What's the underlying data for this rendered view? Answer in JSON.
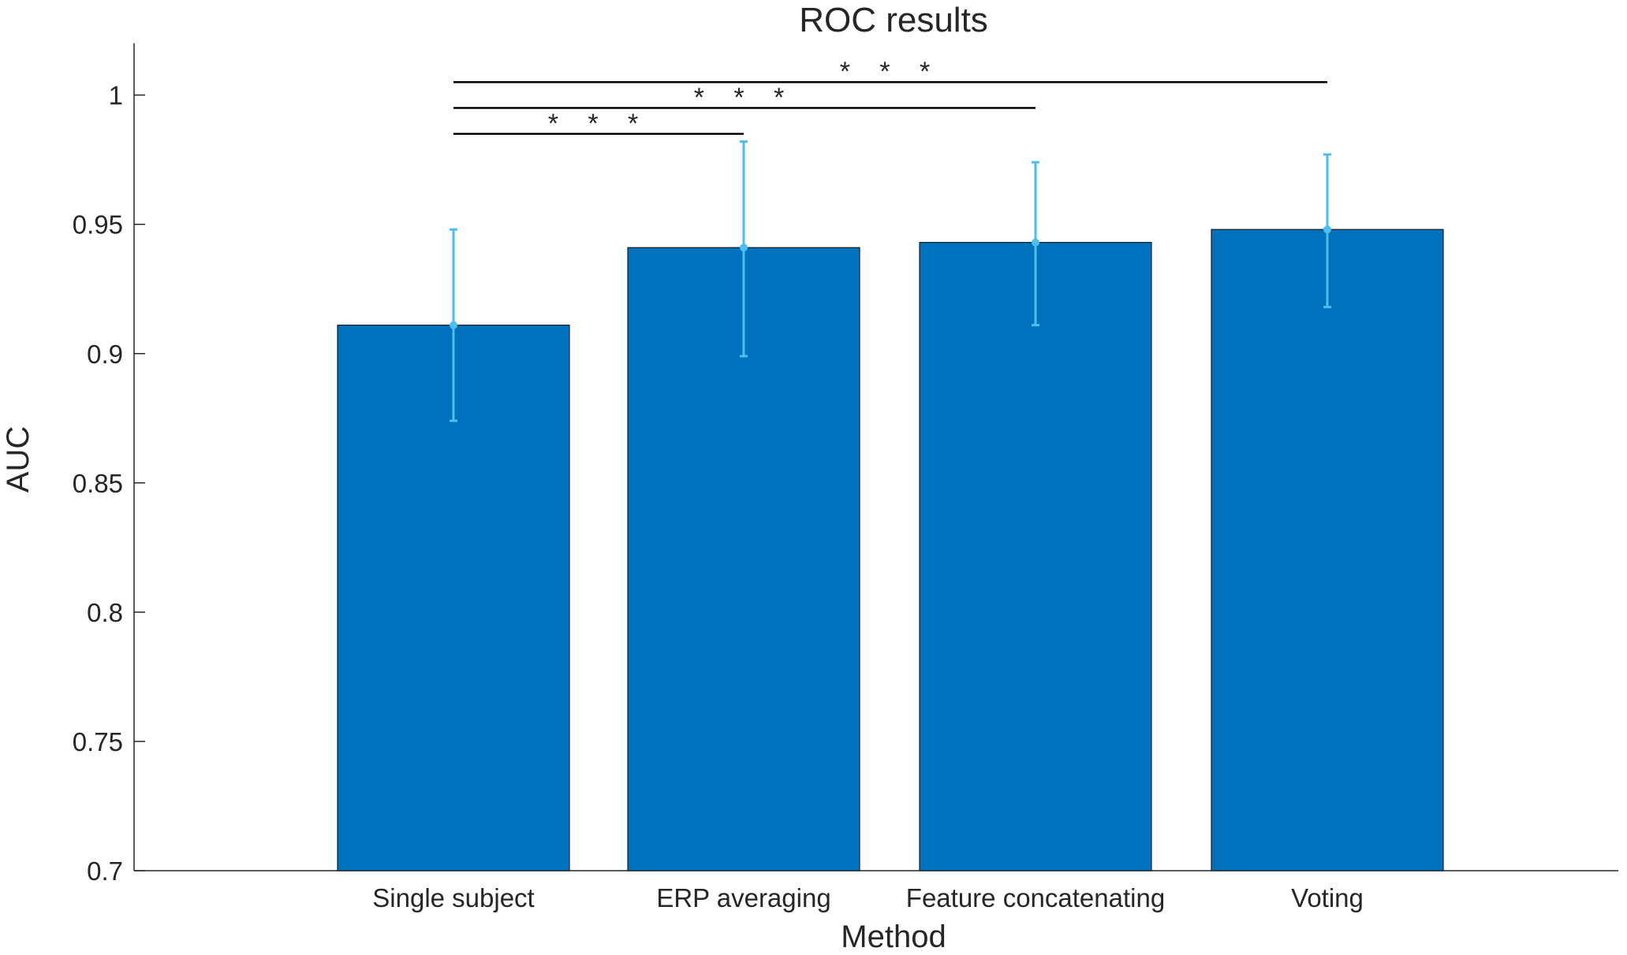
{
  "chart_data": {
    "type": "bar",
    "title": "ROC results",
    "xlabel": "Method",
    "ylabel": "AUC",
    "ylim": [
      0.7,
      1.02
    ],
    "yticks": [
      0.7,
      0.75,
      0.8,
      0.85,
      0.9,
      0.95,
      1
    ],
    "ytick_labels": [
      "0.7",
      "0.75",
      "0.8",
      "0.85",
      "0.9",
      "0.95",
      "1"
    ],
    "categories": [
      "Single subject",
      "ERP averaging",
      "Feature concatenating",
      "Voting"
    ],
    "values": [
      0.911,
      0.941,
      0.943,
      0.948
    ],
    "error_low": [
      0.874,
      0.899,
      0.911,
      0.918
    ],
    "error_high": [
      0.948,
      0.982,
      0.974,
      0.977
    ],
    "significance": [
      {
        "from": 0,
        "to": 1,
        "y": 0.985,
        "label": "* * *"
      },
      {
        "from": 0,
        "to": 2,
        "y": 0.995,
        "label": "* * *"
      },
      {
        "from": 0,
        "to": 3,
        "y": 1.005,
        "label": "* * *"
      }
    ],
    "colors": {
      "bar": "#0072BD",
      "bar_edge": "#1a1a1a",
      "error": "#4DBEEE",
      "axis": "#262626"
    }
  }
}
